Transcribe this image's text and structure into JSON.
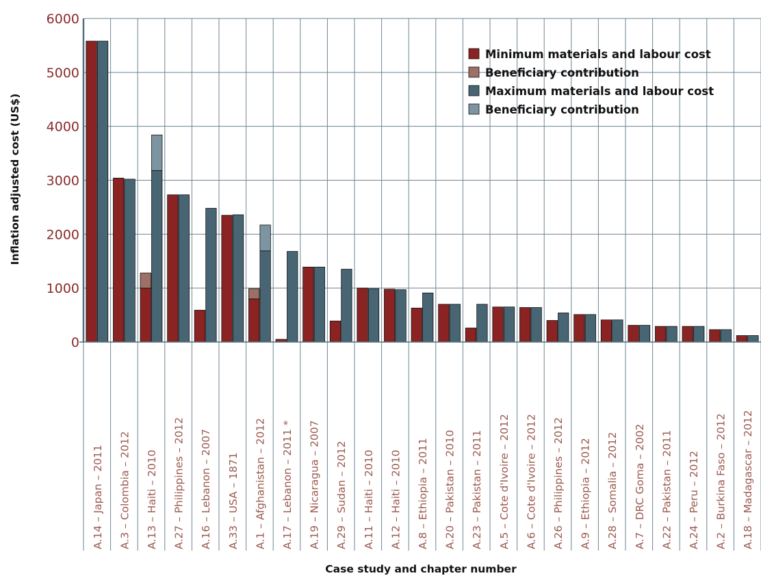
{
  "chart_data": {
    "type": "bar",
    "xlabel": "Case study and chapter number",
    "ylabel": "Inflation adjusted cost (US$)",
    "ylim": [
      0,
      6000
    ],
    "yticks": [
      0,
      1000,
      2000,
      3000,
      4000,
      5000,
      6000
    ],
    "grid": true,
    "legend_position": "top-right",
    "categories": [
      "A.14 – Japan – 2011",
      "A.3 – Colombia – 2012",
      "A.13 – Haiti – 2010",
      "A.27 – Philippines – 2012",
      "A.16 – Lebanon – 2007",
      "A.33 – USA – 1871",
      "A.1 – Afghanistan – 2012",
      "A.17 – Lebanon – 2011 *",
      "A.19 – Nicaragua – 2007",
      "A.29 – Sudan – 2012",
      "A.11 – Haiti – 2010",
      "A.12 – Haiti – 2010",
      "A.8 – Ethiopia – 2011",
      "A.20 – Pakistan – 2010",
      "A.23 – Pakistan – 2011",
      "A.5 – Cote d'Ivoire – 2012",
      "A.6 – Cote d'Ivoire – 2012",
      "A.26 – Philippines – 2012",
      "A.9 – Ethiopia – 2012",
      "A.28 – Somalia – 2012",
      "A.7 – DRC Goma – 2002",
      "A.22 – Pakistan – 2011",
      "A.24 – Peru – 2012",
      "A.2 – Burkina Faso – 2012",
      "A.18 – Madagascar – 2012"
    ],
    "series": [
      {
        "name": "Minimum materials and labour cost",
        "stack": "min",
        "color": "#8b2323",
        "values": [
          5580,
          3040,
          1000,
          2730,
          590,
          2350,
          800,
          50,
          1390,
          390,
          1000,
          980,
          630,
          700,
          260,
          650,
          640,
          400,
          510,
          410,
          310,
          290,
          290,
          230,
          120
        ]
      },
      {
        "name": "Beneficiary contribution",
        "stack": "min",
        "color": "#9c7064",
        "values": [
          0,
          0,
          280,
          0,
          0,
          0,
          190,
          0,
          0,
          0,
          0,
          0,
          0,
          0,
          0,
          0,
          0,
          0,
          0,
          0,
          0,
          0,
          0,
          0,
          0
        ]
      },
      {
        "name": "Maximum materials and labour cost",
        "stack": "max",
        "color": "#486574",
        "values": [
          5580,
          3020,
          3180,
          2730,
          2480,
          2360,
          1690,
          1680,
          1390,
          1350,
          990,
          970,
          910,
          700,
          700,
          650,
          640,
          540,
          510,
          410,
          310,
          290,
          290,
          230,
          120
        ]
      },
      {
        "name": "Beneficiary contribution",
        "stack": "max",
        "color": "#7d95a2",
        "values": [
          0,
          0,
          660,
          0,
          0,
          0,
          480,
          0,
          0,
          0,
          0,
          0,
          0,
          0,
          0,
          0,
          0,
          0,
          0,
          0,
          0,
          0,
          0,
          0,
          0
        ]
      }
    ]
  }
}
